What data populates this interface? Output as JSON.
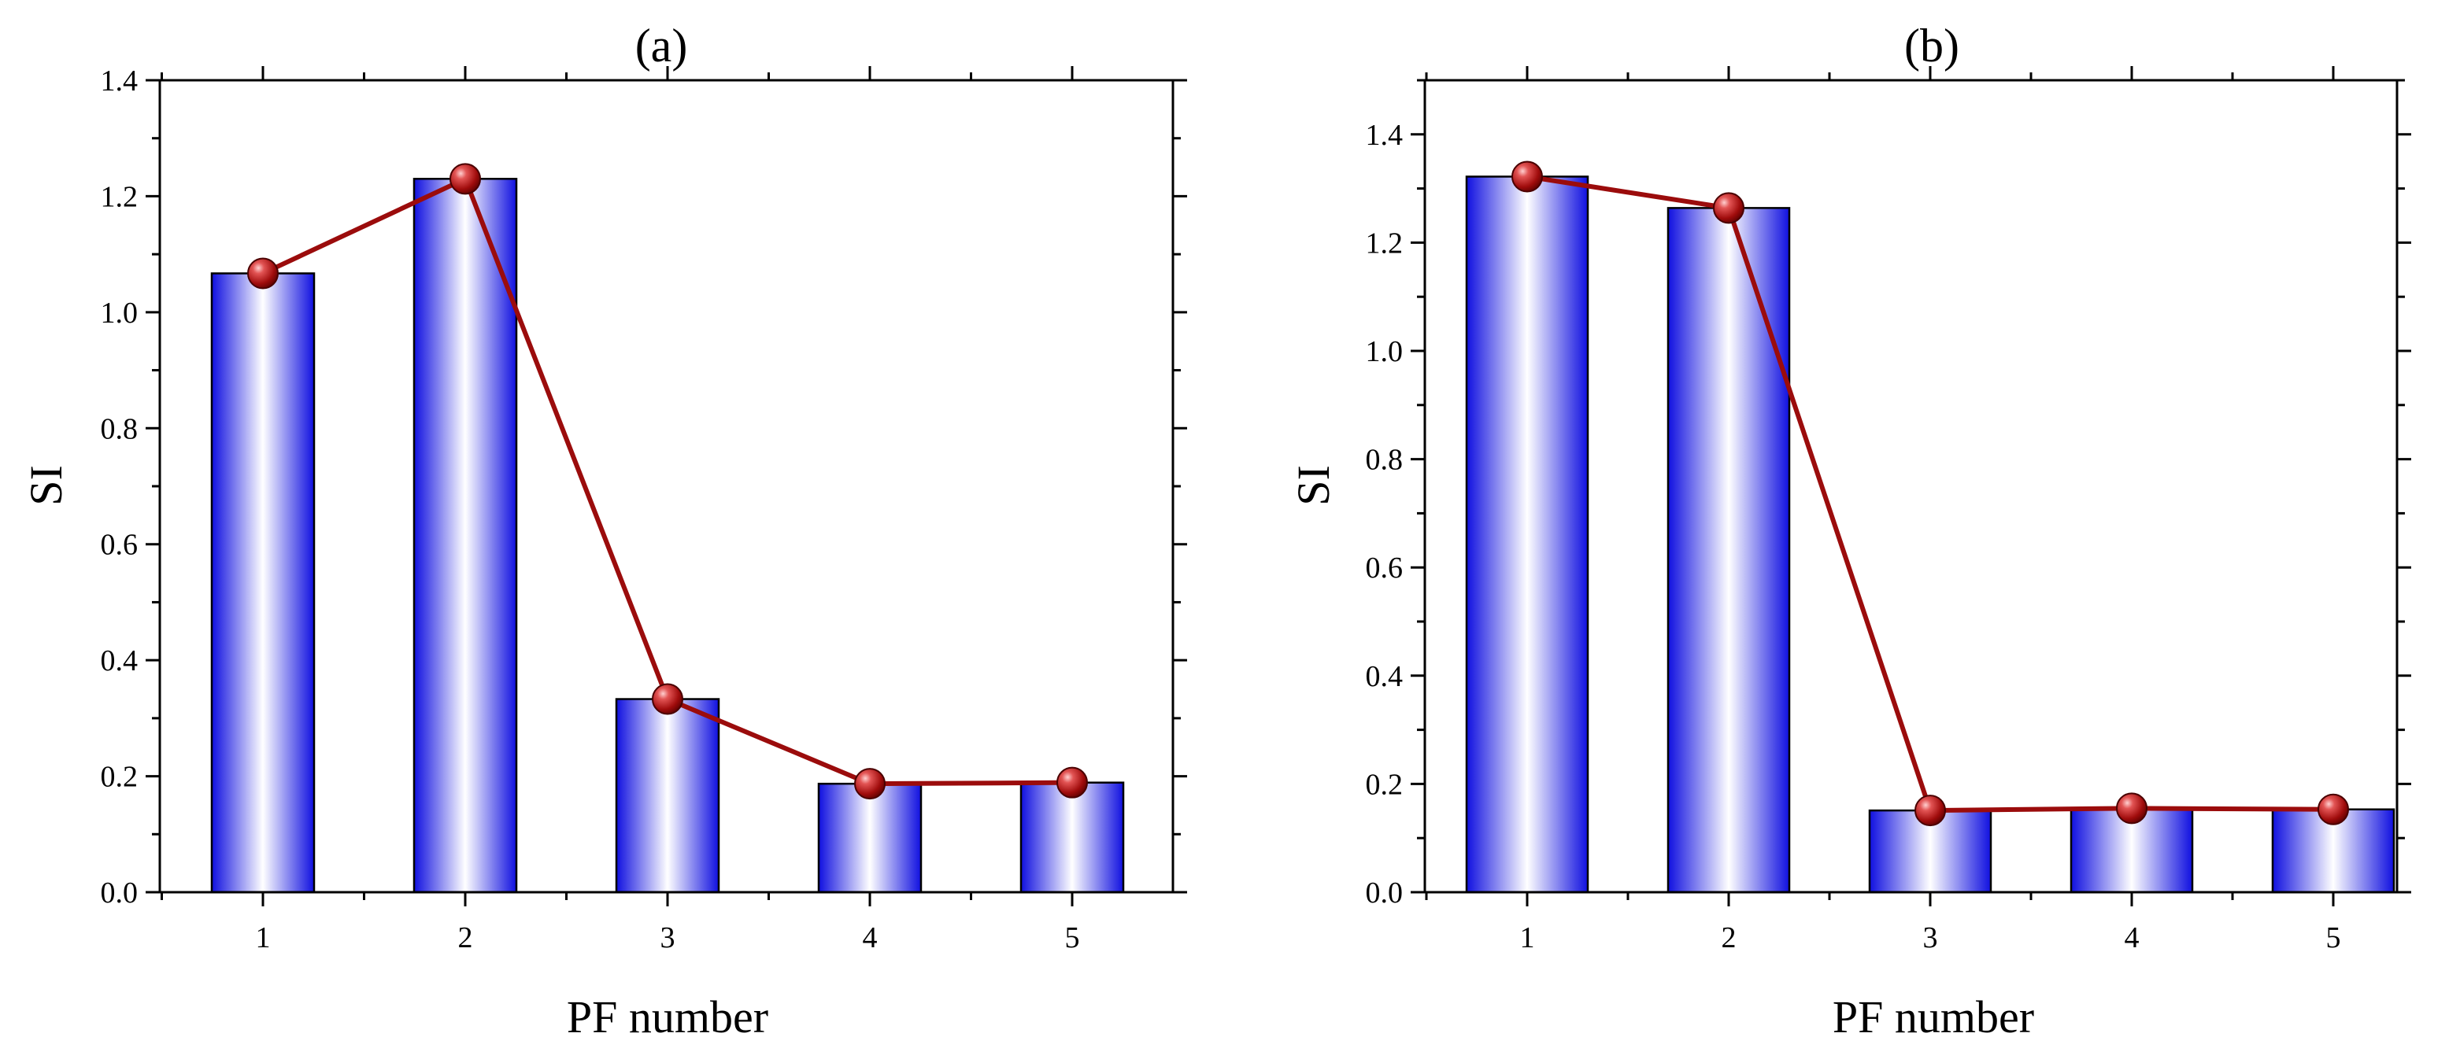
{
  "colors": {
    "bar_edge": "#1010e0",
    "bar_center": "#ffffff",
    "line": "#9b0c0c",
    "marker_light": "#e25454",
    "marker_dark": "#5a0000"
  },
  "chart_data": [
    {
      "panel": "a",
      "type": "bar",
      "title": "(a)",
      "xlabel": "PF number",
      "ylabel": "SI",
      "categories": [
        "1",
        "2",
        "3",
        "4",
        "5"
      ],
      "values": [
        1.067,
        1.23,
        0.333,
        0.187,
        0.189
      ],
      "line_overlay": true,
      "ylim": [
        0,
        1.4
      ],
      "yticks": [
        "0.0",
        "0.2",
        "0.4",
        "0.6",
        "0.8",
        "1.0",
        "1.2",
        "1.4"
      ],
      "ytick_values": [
        0,
        0.2,
        0.4,
        0.6,
        0.8,
        1.0,
        1.2,
        1.4
      ],
      "grid": false
    },
    {
      "panel": "b",
      "type": "bar",
      "title": "(b)",
      "xlabel": "PF number",
      "ylabel": "SI",
      "categories": [
        "1",
        "2",
        "3",
        "4",
        "5"
      ],
      "values": [
        1.322,
        1.264,
        0.151,
        0.155,
        0.153
      ],
      "line_overlay": true,
      "ylim": [
        0,
        1.5
      ],
      "yticks": [
        "0.0",
        "0.2",
        "0.4",
        "0.6",
        "0.8",
        "1.0",
        "1.2",
        "1.4"
      ],
      "ytick_values": [
        0,
        0.2,
        0.4,
        0.6,
        0.8,
        1.0,
        1.2,
        1.4
      ],
      "grid": false
    }
  ]
}
